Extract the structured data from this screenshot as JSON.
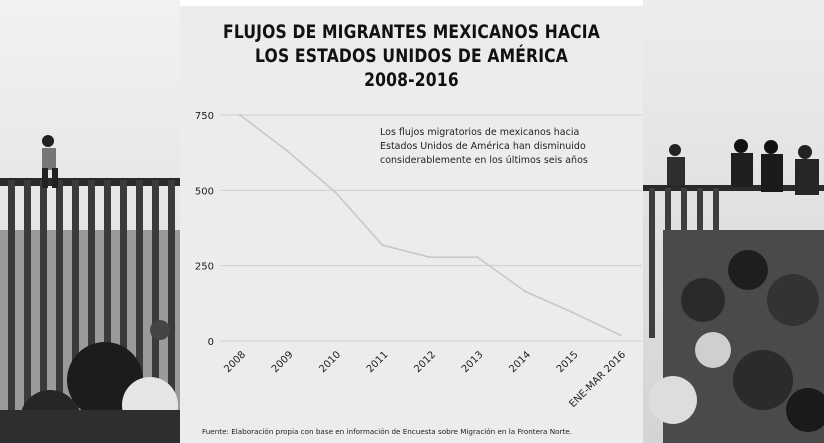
{
  "chart_data": {
    "type": "line",
    "title_lines": [
      "FLUJOS DE MIGRANTES MEXICANOS HACIA",
      "LOS ESTADOS UNIDOS DE AMÉRICA",
      "2008-2016"
    ],
    "categories": [
      "2008",
      "2009",
      "2010",
      "2011",
      "2012",
      "2013",
      "2014",
      "2015",
      "ENE-MAR 2016"
    ],
    "values": [
      750,
      630,
      495,
      318,
      278,
      278,
      165,
      95,
      20
    ],
    "yticks": [
      0,
      250,
      500,
      750
    ],
    "ylim": [
      0,
      750
    ],
    "grid": true,
    "line_color": "#c8c8c8",
    "annotation_lines": [
      "Los flujos migratorios de mexicanos hacia",
      "Estados Unidos de América han disminuido",
      "considerablemente en los últimos seis años"
    ],
    "source": "Fuente: Elaboración propia con base en información de Encuesta sobre Migración en la Frontera Norte."
  }
}
